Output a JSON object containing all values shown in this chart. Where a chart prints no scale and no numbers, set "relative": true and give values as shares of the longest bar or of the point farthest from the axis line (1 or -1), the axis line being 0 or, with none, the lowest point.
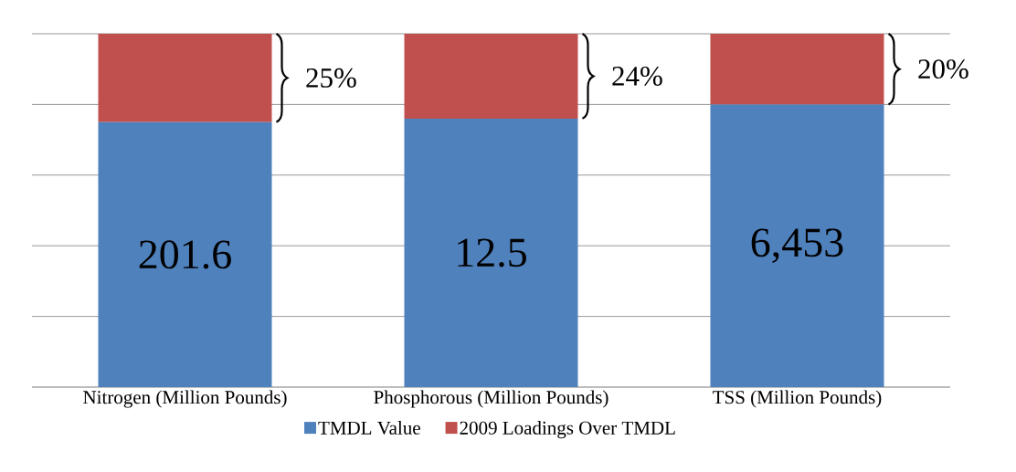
{
  "chart_data": {
    "type": "bar",
    "stacked": true,
    "relative": true,
    "categories": [
      "Nitrogen (Million Pounds)",
      "Phosphorous (Million Pounds)",
      "TSS (Million Pounds)"
    ],
    "series": [
      {
        "name": "TMDL Value",
        "color": "#4f81bd",
        "values": [
          0.75,
          0.76,
          0.8
        ]
      },
      {
        "name": "2009 Loadings Over TMDL",
        "color": "#c0504d",
        "values": [
          0.25,
          0.24,
          0.2
        ]
      }
    ],
    "annotations": [
      "25%",
      "24%",
      "20%",
      "201.6",
      "12.5",
      "6,453"
    ],
    "grid": "y",
    "legend": "bottom"
  }
}
